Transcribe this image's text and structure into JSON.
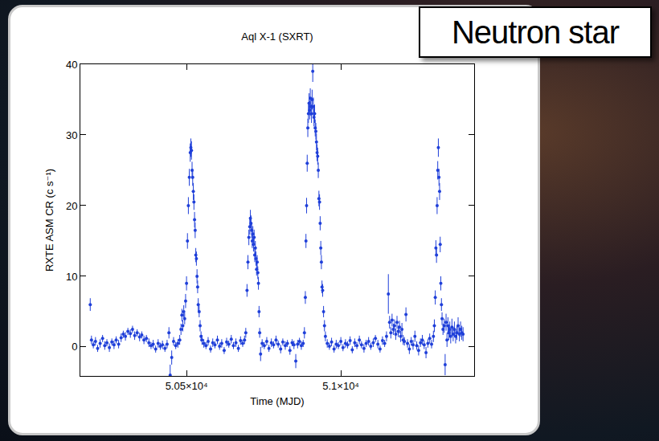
{
  "chart_data": {
    "type": "scatter",
    "title": "Aql X-1 (SXRT)",
    "x_label": "Time (MJD)",
    "y_label": "RXTE ASM CR (c s⁻¹)",
    "color": "#1f3fd9",
    "marker": "circle",
    "grid": false,
    "xlim": [
      50156,
      51432
    ],
    "ylim": [
      -4.1,
      40
    ],
    "xticks": [
      {
        "value": 50500,
        "label": "5.05×10⁴"
      },
      {
        "value": 51000,
        "label": "5.1×10⁴"
      }
    ],
    "yticks": [
      0,
      10,
      20,
      30,
      40
    ],
    "x": [
      50188,
      50192,
      50198,
      50205,
      50212,
      50220,
      50228,
      50235,
      50242,
      50250,
      50258,
      50265,
      50272,
      50280,
      50288,
      50295,
      50302,
      50310,
      50318,
      50325,
      50332,
      50340,
      50348,
      50355,
      50362,
      50370,
      50378,
      50385,
      50392,
      50400,
      50408,
      50415,
      50422,
      50430,
      50437,
      50443,
      50447,
      50452,
      50458,
      50465,
      50472,
      50478,
      50482,
      50485,
      50488,
      50491,
      50494,
      50497,
      50500,
      50503,
      50506,
      50509,
      50512,
      50514,
      50516,
      50518,
      50520,
      50522,
      50524,
      50526,
      50528,
      50530,
      50532,
      50534,
      50536,
      50538,
      50541,
      50544,
      50547,
      50550,
      50556,
      50563,
      50570,
      50578,
      50585,
      50592,
      50600,
      50607,
      50614,
      50622,
      50630,
      50637,
      50645,
      50652,
      50660,
      50668,
      50675,
      50682,
      50688,
      50692,
      50696,
      50699,
      50702,
      50705,
      50707,
      50709,
      50711,
      50713,
      50715,
      50717,
      50719,
      50721,
      50723,
      50725,
      50727,
      50729,
      50731,
      50733,
      50735,
      50737,
      50740,
      50745,
      50752,
      50760,
      50767,
      50775,
      50782,
      50790,
      50797,
      50805,
      50812,
      50820,
      50827,
      50835,
      50842,
      50848,
      50854,
      50860,
      50866,
      50872,
      50878,
      50882,
      50885,
      50887,
      50889,
      50891,
      50893,
      50895,
      50897,
      50899,
      50901,
      50903,
      50905,
      50907,
      50909,
      50911,
      50913,
      50915,
      50917,
      50919,
      50921,
      50923,
      50925,
      50927,
      50929,
      50931,
      50933,
      50935,
      50937,
      50939,
      50941,
      50944,
      50947,
      50950,
      50956,
      50963,
      50970,
      50978,
      50985,
      50992,
      51000,
      51007,
      51015,
      51022,
      51030,
      51037,
      51045,
      51052,
      51060,
      51067,
      51075,
      51082,
      51090,
      51097,
      51105,
      51112,
      51120,
      51127,
      51135,
      51142,
      51148,
      51154,
      51158,
      51162,
      51166,
      51170,
      51174,
      51178,
      51182,
      51186,
      51190,
      51194,
      51198,
      51202,
      51206,
      51211,
      51216,
      51222,
      51228,
      51234,
      51240,
      51246,
      51252,
      51258,
      51264,
      51270,
      51276,
      51282,
      51288,
      51294,
      51300,
      51303,
      51306,
      51308,
      51310,
      51312,
      51314,
      51316,
      51318,
      51320,
      51322,
      51324,
      51326,
      51328,
      51331,
      51335,
      51338,
      51341,
      51344,
      51347,
      51350,
      51353,
      51356,
      51360,
      51364,
      51368,
      51372,
      51376,
      51380,
      51384,
      51388,
      51392,
      51396
    ],
    "values": [
      6.0,
      1.0,
      0.3,
      0.8,
      -0.2,
      0.5,
      1.2,
      0.2,
      0.6,
      -0.1,
      0.7,
      0.3,
      1.0,
      0.4,
      1.3,
      1.8,
      1.5,
      2.2,
      1.9,
      2.5,
      1.6,
      2.0,
      1.4,
      1.7,
      1.0,
      1.2,
      0.6,
      0.2,
      0.4,
      -0.3,
      0.5,
      0.1,
      0.3,
      -0.2,
      0.4,
      2.0,
      -4.0,
      -1.5,
      0.8,
      0.2,
      0.5,
      1.0,
      2.5,
      4.5,
      3.0,
      5.0,
      4.0,
      6.5,
      9.0,
      15.0,
      20.0,
      24.0,
      27.5,
      28.2,
      27.8,
      25.0,
      24.0,
      22.0,
      20.5,
      18.0,
      16.5,
      13.0,
      12.5,
      10.0,
      8.5,
      6.0,
      5.0,
      3.0,
      1.5,
      1.0,
      0.5,
      0.2,
      0.8,
      -0.3,
      0.6,
      0.3,
      1.0,
      0.1,
      0.5,
      -0.5,
      0.7,
      0.4,
      1.1,
      0.2,
      0.6,
      -0.2,
      0.9,
      0.5,
      1.0,
      2.0,
      8.0,
      12.0,
      15.5,
      17.0,
      18.2,
      17.5,
      16.5,
      15.0,
      16.0,
      14.5,
      15.5,
      13.0,
      14.0,
      12.5,
      11.0,
      12.0,
      10.5,
      9.0,
      5.0,
      2.0,
      -1.0,
      0.5,
      0.2,
      0.8,
      -0.2,
      0.6,
      0.3,
      1.0,
      0.4,
      -0.3,
      0.7,
      0.2,
      0.5,
      -0.5,
      0.6,
      0.3,
      -2.0,
      0.4,
      0.8,
      0.2,
      0.5,
      2.0,
      7.0,
      15.0,
      20.0,
      26.0,
      31.0,
      33.0,
      34.5,
      33.5,
      35.2,
      34.0,
      33.0,
      35.0,
      39.0,
      34.0,
      32.5,
      33.0,
      31.0,
      30.5,
      29.0,
      27.5,
      27.0,
      25.0,
      21.0,
      20.5,
      17.5,
      14.0,
      12.0,
      8.5,
      8.0,
      5.0,
      3.0,
      1.5,
      0.5,
      0.1,
      0.7,
      -0.3,
      0.4,
      0.2,
      0.8,
      -0.1,
      0.5,
      0.3,
      0.9,
      -0.4,
      0.6,
      0.2,
      1.0,
      0.3,
      -0.2,
      0.5,
      0.8,
      0.1,
      0.6,
      1.2,
      0.4,
      -0.3,
      0.9,
      0.5,
      1.5,
      7.5,
      3.5,
      2.0,
      3.8,
      2.5,
      3.0,
      1.8,
      3.5,
      2.2,
      2.8,
      1.5,
      2.5,
      1.0,
      0.8,
      4.6,
      0.5,
      -0.3,
      0.8,
      0.3,
      1.5,
      0.2,
      -0.5,
      0.6,
      1.0,
      0.3,
      -0.8,
      0.5,
      1.2,
      0.4,
      1.5,
      3.0,
      7.0,
      14.0,
      13.0,
      20.0,
      25.0,
      28.2,
      24.0,
      22.0,
      14.5,
      9.0,
      6.0,
      4.0,
      2.5,
      3.0,
      -2.5,
      3.5,
      1.0,
      3.0,
      2.0,
      2.5,
      1.5,
      2.8,
      1.8,
      2.5,
      1.5,
      2.0,
      3.0,
      1.8,
      2.5,
      2.0,
      1.8
    ],
    "errors": [
      0.9,
      0.6,
      0.5,
      0.6,
      0.5,
      0.6,
      0.5,
      0.6,
      0.5,
      0.6,
      0.5,
      0.6,
      0.5,
      0.6,
      0.6,
      0.5,
      0.6,
      0.5,
      0.6,
      0.5,
      0.6,
      0.5,
      0.6,
      0.5,
      0.6,
      0.5,
      0.6,
      0.5,
      0.6,
      0.5,
      0.6,
      0.5,
      0.6,
      0.5,
      0.6,
      0.8,
      1.5,
      1.0,
      0.6,
      0.5,
      0.6,
      0.7,
      0.8,
      0.9,
      0.8,
      0.9,
      0.8,
      1.0,
      1.0,
      1.1,
      1.2,
      1.2,
      1.3,
      1.3,
      1.3,
      1.2,
      1.2,
      1.2,
      1.1,
      1.1,
      1.1,
      1.0,
      1.0,
      1.0,
      0.9,
      0.9,
      0.8,
      0.8,
      0.7,
      0.7,
      0.6,
      0.5,
      0.6,
      0.5,
      0.6,
      0.5,
      0.6,
      0.5,
      0.6,
      0.5,
      0.6,
      0.5,
      0.6,
      0.5,
      0.6,
      0.5,
      0.6,
      0.5,
      0.6,
      0.7,
      0.9,
      1.0,
      1.1,
      1.1,
      1.2,
      1.1,
      1.1,
      1.0,
      1.1,
      1.0,
      1.1,
      1.0,
      1.0,
      1.0,
      0.9,
      1.0,
      0.9,
      0.9,
      0.8,
      0.7,
      1.0,
      0.6,
      0.5,
      0.6,
      0.5,
      0.6,
      0.5,
      0.6,
      0.5,
      0.6,
      0.5,
      0.6,
      0.5,
      0.6,
      0.5,
      0.6,
      1.0,
      0.6,
      0.5,
      0.6,
      0.5,
      0.8,
      0.9,
      1.0,
      1.1,
      1.2,
      1.3,
      1.3,
      1.4,
      1.3,
      1.4,
      1.3,
      1.3,
      1.4,
      1.5,
      1.3,
      1.3,
      1.3,
      1.2,
      1.2,
      1.2,
      1.2,
      1.2,
      1.1,
      1.1,
      1.1,
      1.0,
      1.0,
      1.0,
      0.9,
      0.9,
      0.8,
      0.8,
      0.7,
      0.6,
      0.5,
      0.6,
      0.5,
      0.6,
      0.5,
      0.6,
      0.5,
      0.6,
      0.5,
      0.6,
      0.5,
      0.6,
      0.5,
      0.6,
      0.5,
      0.6,
      0.5,
      0.6,
      0.5,
      0.6,
      0.5,
      0.6,
      0.5,
      0.6,
      0.5,
      0.7,
      2.8,
      0.9,
      0.8,
      0.9,
      0.8,
      0.9,
      0.8,
      0.9,
      0.8,
      0.9,
      0.8,
      0.9,
      0.7,
      0.6,
      1.0,
      0.6,
      0.7,
      0.6,
      0.7,
      0.8,
      0.6,
      0.7,
      0.6,
      0.7,
      0.6,
      0.8,
      0.6,
      0.7,
      0.6,
      0.8,
      0.9,
      1.0,
      1.1,
      1.1,
      1.2,
      1.3,
      1.3,
      1.2,
      1.2,
      1.1,
      1.0,
      0.9,
      0.9,
      0.8,
      1.0,
      1.5,
      1.2,
      1.0,
      1.2,
      1.0,
      1.1,
      1.0,
      1.2,
      1.0,
      1.1,
      1.0,
      1.0,
      1.2,
      1.0,
      1.1,
      1.0,
      1.0
    ]
  },
  "slide": {
    "label": "Neutron star"
  }
}
